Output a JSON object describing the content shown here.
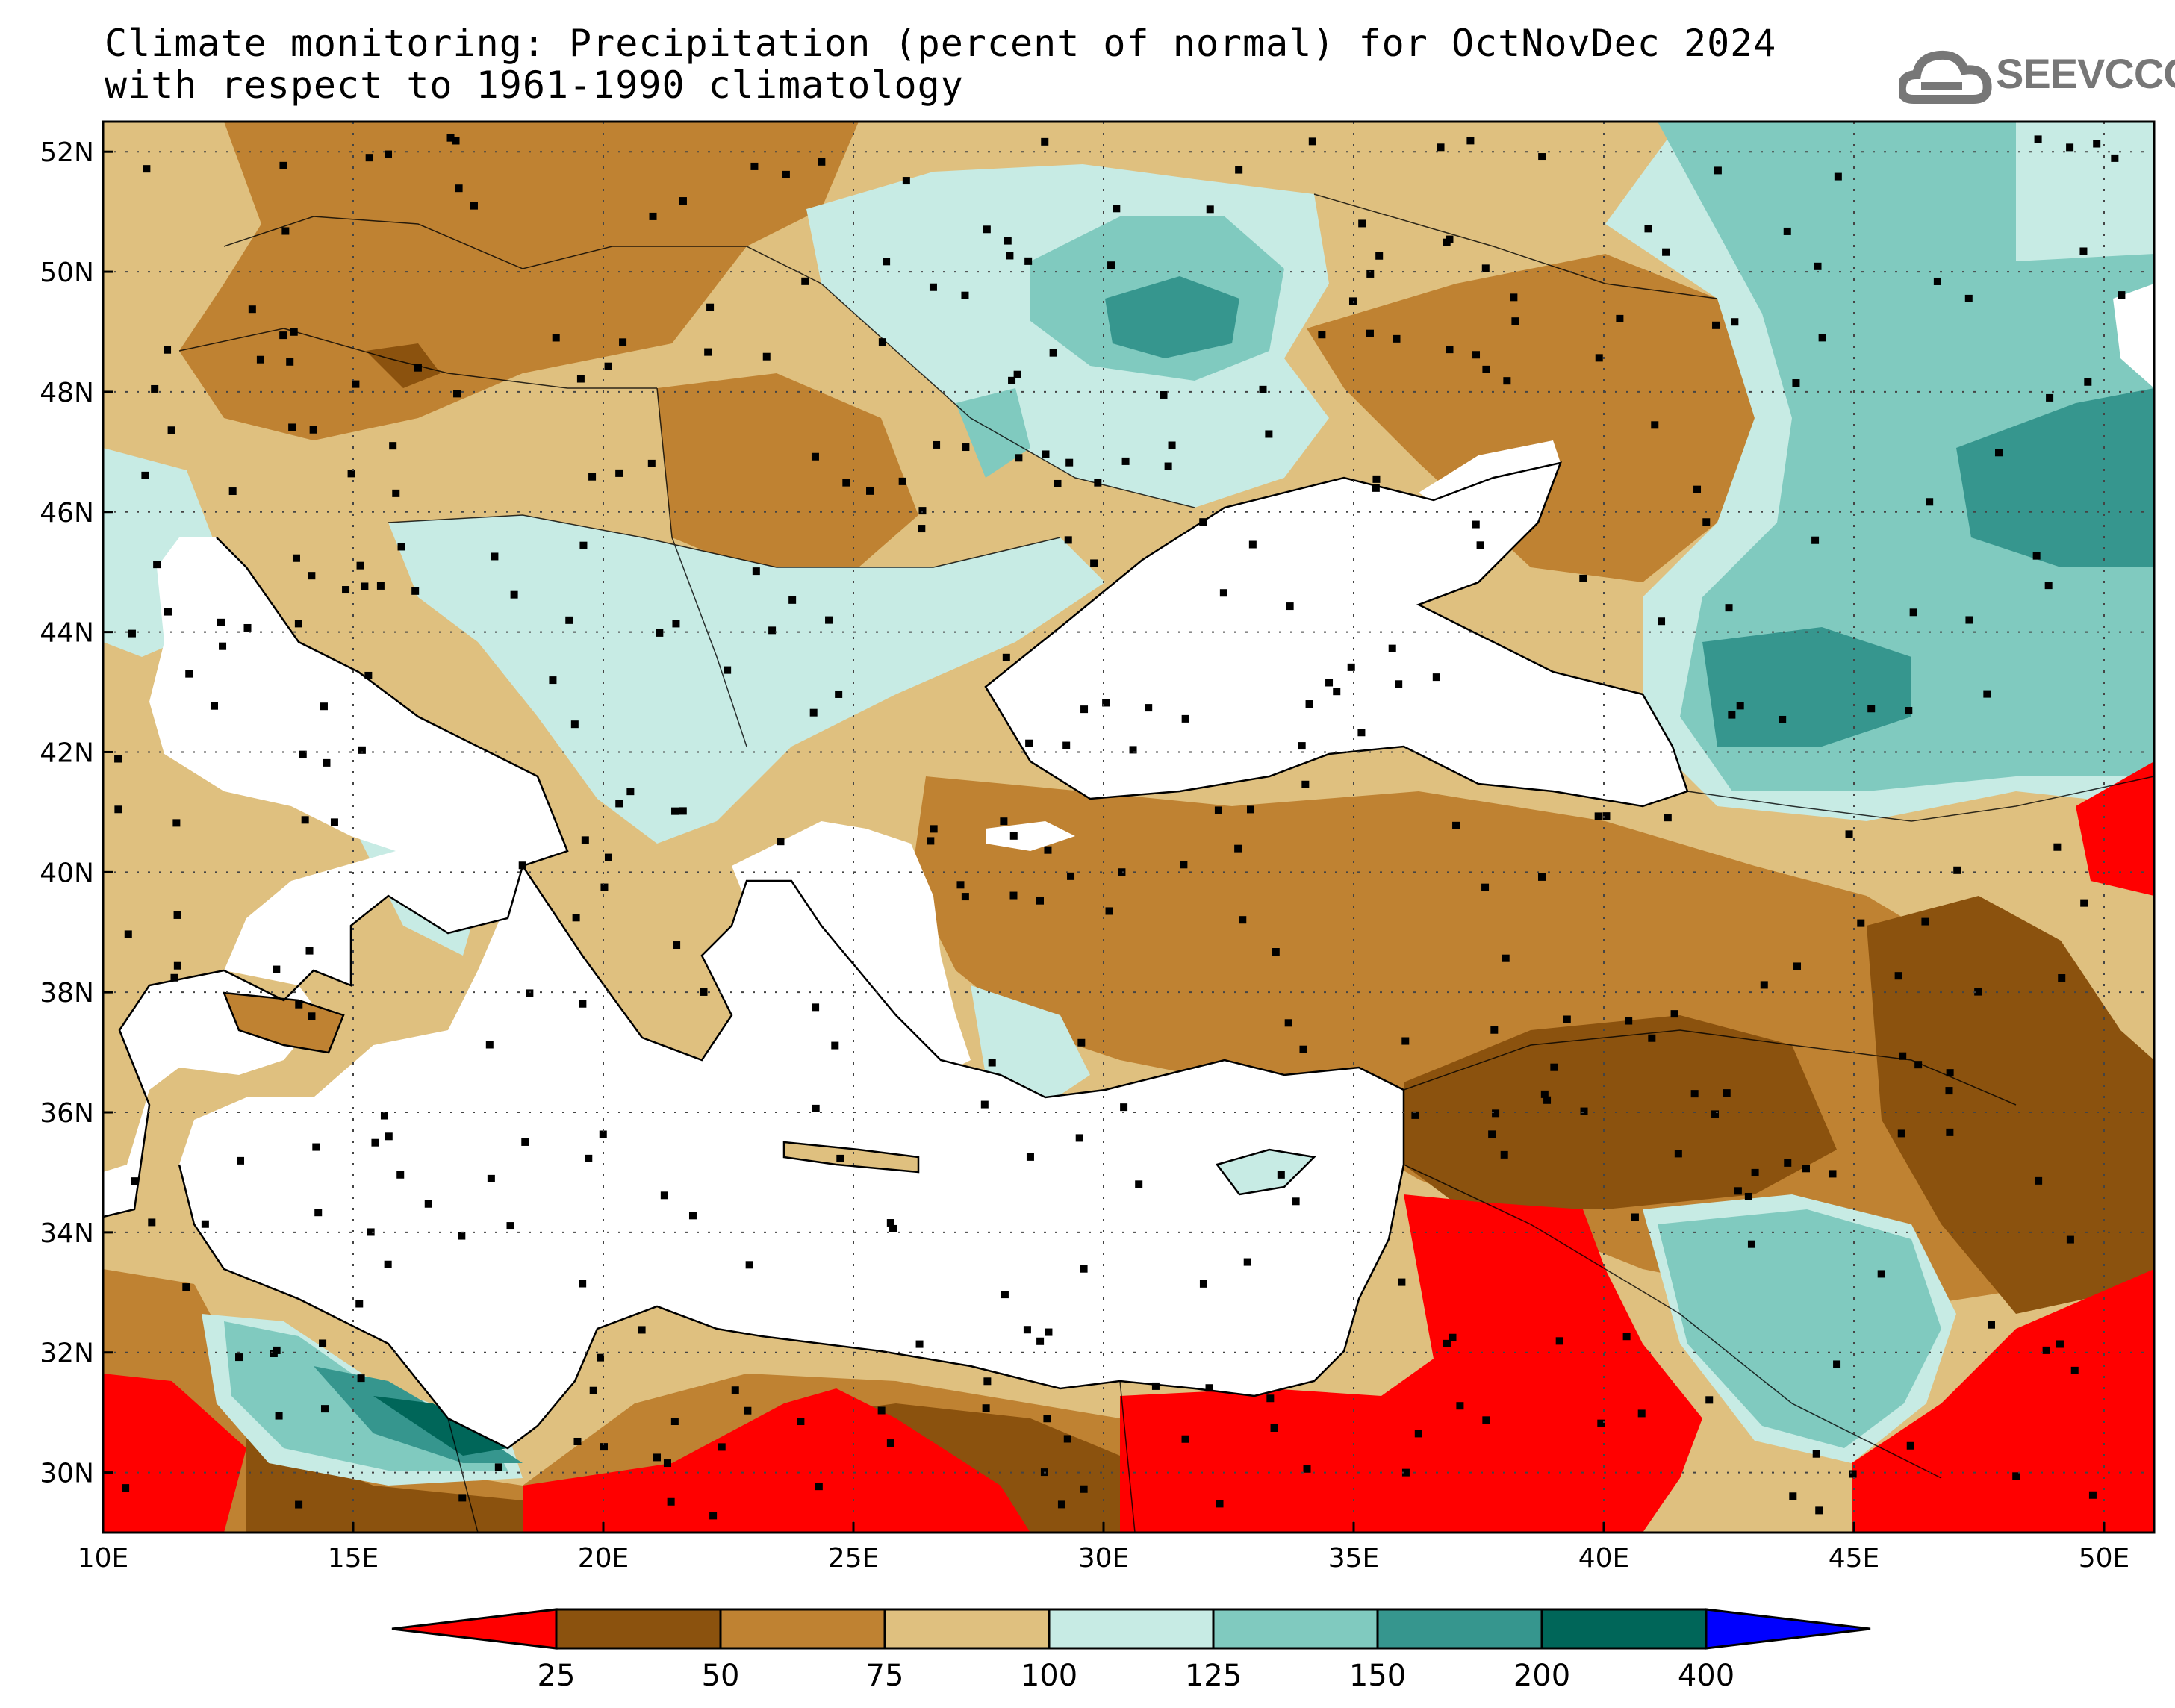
{
  "title": {
    "line1": "Climate monitoring: Precipitation (percent of normal) for OctNovDec 2024",
    "line2": "with respect to 1961-1990 climatology"
  },
  "logo": {
    "text": "SEEVCCC",
    "icon": "cloud-icon"
  },
  "map": {
    "lon_range": [
      10,
      51
    ],
    "lat_range": [
      29,
      52.5
    ],
    "lon_ticks": [
      "10E",
      "15E",
      "20E",
      "25E",
      "30E",
      "35E",
      "40E",
      "45E",
      "50E"
    ],
    "lat_ticks": [
      "30N",
      "32N",
      "34N",
      "36N",
      "38N",
      "40N",
      "42N",
      "44N",
      "46N",
      "48N",
      "50N",
      "52N"
    ],
    "gridlines": "dotted"
  },
  "colorbar": {
    "labels": [
      "25",
      "50",
      "75",
      "100",
      "125",
      "150",
      "200",
      "400"
    ],
    "colors": [
      "#ff0000",
      "#8b520e",
      "#bf8232",
      "#dfc07f",
      "#c7ebe4",
      "#80cabf",
      "#36968e",
      "#006659",
      "#0000ff"
    ]
  }
}
